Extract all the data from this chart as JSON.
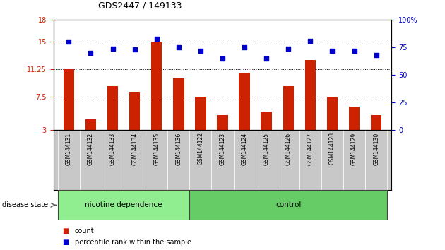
{
  "title": "GDS2447 / 149133",
  "samples": [
    "GSM144131",
    "GSM144132",
    "GSM144133",
    "GSM144134",
    "GSM144135",
    "GSM144136",
    "GSM144122",
    "GSM144123",
    "GSM144124",
    "GSM144125",
    "GSM144126",
    "GSM144127",
    "GSM144128",
    "GSM144129",
    "GSM144130"
  ],
  "bar_values": [
    11.25,
    4.5,
    9.0,
    8.2,
    15.0,
    10.0,
    7.5,
    5.0,
    10.8,
    5.5,
    9.0,
    12.5,
    7.5,
    6.2,
    5.0
  ],
  "dot_values": [
    80,
    70,
    74,
    73,
    83,
    75,
    72,
    65,
    75,
    65,
    74,
    81,
    72,
    72,
    68
  ],
  "ylim_left": [
    3,
    18
  ],
  "ylim_right": [
    0,
    100
  ],
  "yticks_left": [
    3,
    7.5,
    11.25,
    15,
    18
  ],
  "yticks_right": [
    0,
    25,
    50,
    75,
    100
  ],
  "ytick_labels_left": [
    "3",
    "7.5",
    "11.25",
    "15",
    "18"
  ],
  "ytick_labels_right": [
    "0",
    "25",
    "50",
    "75",
    "100%"
  ],
  "hlines": [
    7.5,
    11.25,
    15
  ],
  "bar_color": "#cc2200",
  "dot_color": "#0000cc",
  "n_nicotine": 6,
  "n_control": 9,
  "disease_label": "disease state",
  "nicotine_label": "nicotine dependence",
  "control_label": "control",
  "legend_bar_label": "count",
  "legend_dot_label": "percentile rank within the sample",
  "bg_color_nicotine": "#90ee90",
  "bg_color_control": "#66cc66",
  "tick_color_left": "#cc2200",
  "tick_color_right": "#0000cc",
  "cell_bg": "#c8c8c8",
  "cell_border": "#ffffff"
}
